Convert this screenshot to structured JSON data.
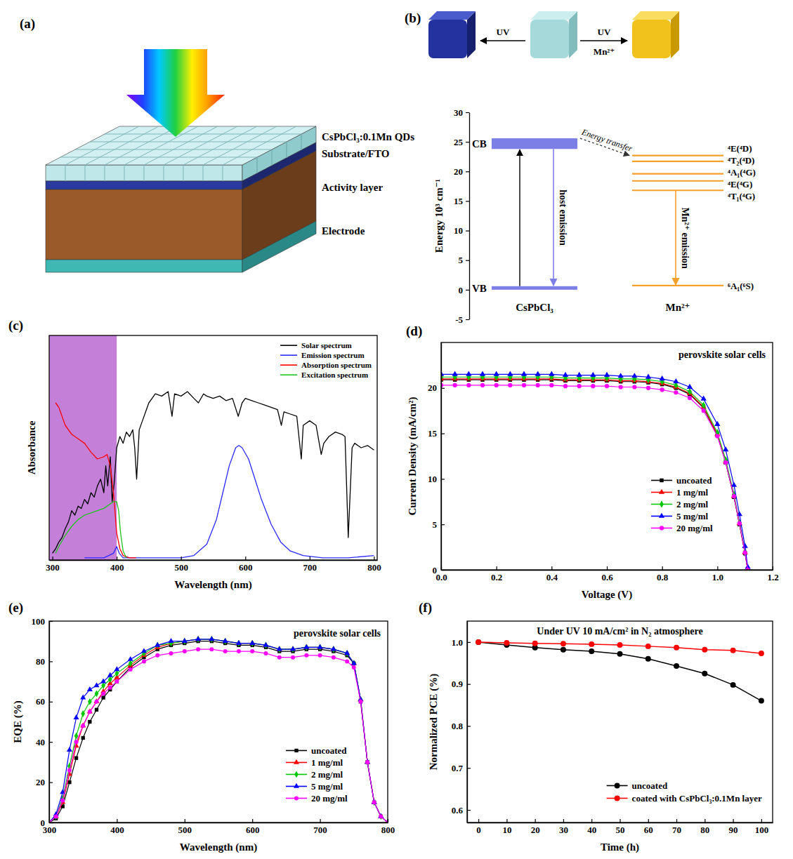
{
  "device_diagram": {
    "panel_label": "(a)",
    "layers": [
      "CsPbCl₃:0.1Mn QDs",
      "Substrate/FTO",
      "Activity layer",
      "Electrode"
    ]
  },
  "cube_diagram": {
    "panel_label": "(b)",
    "left_arrow_label": "UV",
    "right_arrow_label": "UV",
    "right_arrow_sublabel": "Mn²⁺"
  },
  "chart_data": [
    {
      "type": "energy_level",
      "ylabel": "Energy 10³ cm⁻¹",
      "ylim": [
        -5,
        30
      ],
      "yticks": [
        -5,
        0,
        5,
        10,
        15,
        20,
        25,
        30
      ],
      "host": {
        "name": "CsPbCl₃",
        "color": "#7b7fe6",
        "emission_label": "host emission",
        "bands": [
          {
            "label": "CB",
            "range": [
              23.8,
              25.6
            ]
          },
          {
            "label": "VB",
            "range": [
              0,
              0.6
            ]
          }
        ]
      },
      "dopant": {
        "name": "Mn²⁺",
        "color": "#f5a02a",
        "emission_label": "Mn²⁺ emission",
        "levels": [
          {
            "label": "⁴E(⁴D)",
            "energy": 22.7
          },
          {
            "label": "⁴T₂(⁴D)",
            "energy": 21.7
          },
          {
            "label": "⁴A₁(⁴G)",
            "energy": 19.6
          },
          {
            "label": "⁴E(⁴G)",
            "energy": 18.4
          },
          {
            "label": "⁴T₁(⁴G)",
            "energy": 16.8
          },
          {
            "label": "⁶A₁(⁶S)",
            "energy": 0.7
          }
        ]
      },
      "transfer_label": "Energy transfer"
    },
    {
      "type": "line",
      "panel_label": "(c)",
      "xlabel": "Wavelength (nm)",
      "ylabel": "Absorbance",
      "xlim": [
        295,
        805
      ],
      "ylim": [
        0,
        1
      ],
      "xticks": [
        300,
        400,
        500,
        600,
        700,
        800
      ],
      "tick_labels": "x",
      "legend": "upper right",
      "shaded_region": [
        295,
        400
      ],
      "series": [
        {
          "name": "Solar spectrum",
          "color": "#000000",
          "x": [
            300,
            305,
            310,
            315,
            320,
            325,
            330,
            335,
            340,
            345,
            350,
            355,
            360,
            365,
            370,
            375,
            380,
            383,
            386,
            390,
            393,
            396,
            400,
            405,
            410,
            415,
            420,
            425,
            428,
            431,
            435,
            440,
            445,
            450,
            455,
            460,
            470,
            480,
            486,
            490,
            500,
            510,
            520,
            527,
            535,
            540,
            550,
            560,
            570,
            580,
            589,
            595,
            600,
            610,
            620,
            630,
            640,
            650,
            656,
            660,
            670,
            680,
            687,
            690,
            700,
            710,
            718,
            722,
            730,
            740,
            750,
            755,
            760,
            763,
            766,
            770,
            780,
            790,
            800
          ],
          "values": [
            0.03,
            0.05,
            0.08,
            0.1,
            0.14,
            0.17,
            0.22,
            0.2,
            0.24,
            0.23,
            0.27,
            0.25,
            0.3,
            0.28,
            0.33,
            0.36,
            0.3,
            0.42,
            0.33,
            0.46,
            0.26,
            0.34,
            0.5,
            0.55,
            0.52,
            0.57,
            0.55,
            0.58,
            0.5,
            0.36,
            0.58,
            0.62,
            0.66,
            0.7,
            0.72,
            0.74,
            0.73,
            0.75,
            0.64,
            0.74,
            0.73,
            0.75,
            0.72,
            0.7,
            0.74,
            0.73,
            0.72,
            0.73,
            0.71,
            0.72,
            0.64,
            0.7,
            0.72,
            0.71,
            0.7,
            0.69,
            0.68,
            0.67,
            0.6,
            0.66,
            0.65,
            0.64,
            0.45,
            0.6,
            0.62,
            0.6,
            0.47,
            0.52,
            0.55,
            0.57,
            0.56,
            0.55,
            0.1,
            0.3,
            0.5,
            0.52,
            0.5,
            0.51,
            0.49
          ]
        },
        {
          "name": "Emission spectrum",
          "color": "#2a2aff",
          "x": [
            350,
            380,
            395,
            400,
            404,
            410,
            430,
            470,
            500,
            520,
            540,
            555,
            565,
            575,
            585,
            590,
            595,
            605,
            615,
            625,
            640,
            655,
            670,
            690,
            720,
            760,
            800
          ],
          "values": [
            0.01,
            0.01,
            0.03,
            0.06,
            0.03,
            0.01,
            0.01,
            0.01,
            0.01,
            0.02,
            0.07,
            0.18,
            0.3,
            0.42,
            0.5,
            0.51,
            0.5,
            0.45,
            0.36,
            0.27,
            0.16,
            0.08,
            0.04,
            0.02,
            0.01,
            0.01,
            0.02
          ]
        },
        {
          "name": "Absorption spectrum",
          "color": "#ff0000",
          "x": [
            305,
            310,
            320,
            330,
            340,
            350,
            360,
            370,
            380,
            385,
            390,
            395,
            400,
            405,
            410,
            420,
            430
          ],
          "values": [
            0.7,
            0.68,
            0.6,
            0.56,
            0.54,
            0.52,
            0.48,
            0.45,
            0.46,
            0.47,
            0.42,
            0.3,
            0.12,
            0.05,
            0.02,
            0.01,
            0.01
          ]
        },
        {
          "name": "Excitation spectrum",
          "color": "#1fc41f",
          "x": [
            305,
            310,
            320,
            330,
            340,
            350,
            360,
            370,
            380,
            390,
            395,
            400,
            403,
            406,
            410,
            415
          ],
          "values": [
            0.03,
            0.06,
            0.11,
            0.15,
            0.18,
            0.2,
            0.21,
            0.22,
            0.23,
            0.25,
            0.26,
            0.26,
            0.22,
            0.12,
            0.04,
            0.01
          ]
        }
      ]
    },
    {
      "type": "line",
      "panel_label": "(d)",
      "title": "perovskite solar cells",
      "xlabel": "Voltage (V)",
      "ylabel": "Current Density (mA/cm²)",
      "xlim": [
        0,
        1.2
      ],
      "ylim": [
        0,
        25
      ],
      "xticks": [
        {
          "value": 0,
          "label": "0.0"
        },
        0.2,
        0.4,
        0.6,
        0.8,
        {
          "value": 1,
          "label": "1.0"
        },
        1.2
      ],
      "yticks": [
        0,
        5,
        10,
        15,
        20
      ],
      "legend": "lower right",
      "x": [
        0,
        0.05,
        0.1,
        0.15,
        0.2,
        0.25,
        0.3,
        0.35,
        0.4,
        0.45,
        0.5,
        0.55,
        0.6,
        0.65,
        0.7,
        0.75,
        0.8,
        0.85,
        0.9,
        0.95,
        1.0,
        1.03,
        1.06,
        1.08,
        1.1,
        1.11
      ],
      "series": [
        {
          "name": "uncoated",
          "color": "#000000",
          "marker": "square",
          "values": [
            20.9,
            20.9,
            20.9,
            20.9,
            20.9,
            20.9,
            20.9,
            20.9,
            20.9,
            20.8,
            20.8,
            20.8,
            20.8,
            20.7,
            20.7,
            20.6,
            20.4,
            20.0,
            19.3,
            17.8,
            14.8,
            11.8,
            8.0,
            5.0,
            1.8,
            0
          ]
        },
        {
          "name": "1 mg/ml",
          "color": "#ff0000",
          "marker": "triangle",
          "values": [
            21.0,
            21.0,
            21.0,
            21.0,
            21.0,
            21.0,
            21.0,
            21.0,
            21.0,
            20.9,
            20.9,
            20.9,
            20.9,
            20.8,
            20.8,
            20.7,
            20.5,
            20.1,
            19.4,
            17.9,
            14.9,
            11.9,
            8.1,
            5.1,
            1.9,
            0
          ]
        },
        {
          "name": "2 mg/ml",
          "color": "#00c800",
          "marker": "diamond",
          "values": [
            21.2,
            21.2,
            21.2,
            21.2,
            21.2,
            21.2,
            21.2,
            21.2,
            21.2,
            21.1,
            21.1,
            21.1,
            21.1,
            21.0,
            21.0,
            20.9,
            20.7,
            20.3,
            19.6,
            18.1,
            15.1,
            12.1,
            8.3,
            5.2,
            2.0,
            0
          ]
        },
        {
          "name": "5 mg/ml",
          "color": "#0000ff",
          "marker": "triangle",
          "values": [
            21.5,
            21.5,
            21.5,
            21.5,
            21.5,
            21.5,
            21.5,
            21.5,
            21.5,
            21.4,
            21.4,
            21.4,
            21.4,
            21.3,
            21.3,
            21.2,
            21.0,
            20.7,
            20.1,
            18.8,
            16.0,
            13.2,
            9.3,
            6.1,
            2.6,
            0.3
          ]
        },
        {
          "name": "20 mg/ml",
          "color": "#ff00ff",
          "marker": "circle",
          "values": [
            20.3,
            20.3,
            20.3,
            20.3,
            20.3,
            20.3,
            20.3,
            20.3,
            20.3,
            20.2,
            20.2,
            20.2,
            20.2,
            20.1,
            20.1,
            20.0,
            19.8,
            19.5,
            18.9,
            17.5,
            14.7,
            11.8,
            8.1,
            5.1,
            1.9,
            0
          ]
        }
      ]
    },
    {
      "type": "line",
      "panel_label": "(e)",
      "title": "perovskite solar cells",
      "xlabel": "Wavelength (nm)",
      "ylabel": "EQE (%)",
      "xlim": [
        300,
        800
      ],
      "ylim": [
        0,
        100
      ],
      "xticks": [
        300,
        400,
        500,
        600,
        700,
        800
      ],
      "yticks": [
        0,
        20,
        40,
        60,
        80,
        100
      ],
      "legend": "lower right",
      "x": [
        300,
        310,
        320,
        330,
        340,
        350,
        360,
        370,
        380,
        390,
        400,
        420,
        440,
        460,
        480,
        500,
        520,
        540,
        560,
        580,
        600,
        620,
        640,
        660,
        680,
        700,
        720,
        740,
        750,
        760,
        770,
        780,
        790,
        800
      ],
      "series": [
        {
          "name": "uncoated",
          "color": "#000000",
          "marker": "square",
          "values": [
            0,
            2,
            8,
            20,
            32,
            42,
            50,
            56,
            62,
            66,
            70,
            77,
            82,
            86,
            88,
            89,
            90,
            90,
            89,
            88,
            88,
            87,
            85,
            85,
            86,
            86,
            85,
            83,
            79,
            60,
            30,
            10,
            3,
            0
          ]
        },
        {
          "name": "1 mg/ml",
          "color": "#ff0000",
          "marker": "triangle",
          "values": [
            0,
            3,
            10,
            24,
            38,
            48,
            55,
            60,
            65,
            69,
            72,
            78,
            83,
            87,
            89,
            90,
            91,
            91,
            90,
            89,
            89,
            88,
            86,
            86,
            87,
            87,
            86,
            84,
            79,
            61,
            30,
            10,
            3,
            0
          ]
        },
        {
          "name": "2 mg/ml",
          "color": "#00c800",
          "marker": "diamond",
          "values": [
            0,
            3,
            12,
            28,
            43,
            54,
            60,
            64,
            68,
            71,
            74,
            79,
            84,
            88,
            89,
            90,
            91,
            91,
            90,
            89,
            89,
            88,
            86,
            86,
            87,
            87,
            86,
            84,
            79,
            61,
            30,
            10,
            3,
            0
          ]
        },
        {
          "name": "5 mg/ml",
          "color": "#0000ff",
          "marker": "triangle",
          "values": [
            0,
            4,
            15,
            36,
            52,
            62,
            66,
            68,
            70,
            73,
            76,
            81,
            85,
            88,
            90,
            90,
            91,
            91,
            90,
            89,
            89,
            88,
            86,
            86,
            87,
            87,
            86,
            84,
            79,
            61,
            30,
            10,
            3,
            0
          ]
        },
        {
          "name": "20 mg/ml",
          "color": "#ff00ff",
          "marker": "circle",
          "values": [
            0,
            3,
            11,
            26,
            40,
            48,
            55,
            60,
            64,
            67,
            70,
            76,
            80,
            83,
            84,
            85,
            86,
            86,
            85,
            85,
            85,
            84,
            82,
            82,
            83,
            83,
            82,
            80,
            77,
            60,
            30,
            10,
            3,
            0
          ]
        }
      ]
    },
    {
      "type": "line",
      "panel_label": "(f)",
      "title": "Under UV 10 mA/cm² in N₂ atmosphere",
      "xlabel": "Time (h)",
      "ylabel": "Normalized PCE (%)",
      "xlim": [
        -4,
        104
      ],
      "ylim": [
        0.57,
        1.05
      ],
      "xticks": [
        0,
        10,
        20,
        30,
        40,
        50,
        60,
        70,
        80,
        90,
        100
      ],
      "yticks": [
        0.6,
        0.7,
        0.8,
        0.9,
        {
          "value": 1,
          "label": "1.0"
        }
      ],
      "legend": "lower right",
      "x": [
        0,
        10,
        20,
        30,
        40,
        50,
        60,
        70,
        80,
        90,
        100
      ],
      "series": [
        {
          "name": "uncoated",
          "color": "#000000",
          "marker": "circle",
          "values": [
            1.0,
            0.993,
            0.987,
            0.982,
            0.978,
            0.972,
            0.96,
            0.943,
            0.925,
            0.898,
            0.86
          ]
        },
        {
          "name": "coated with CsPbCl₃:0.1Mn layer",
          "color": "#ff0000",
          "marker": "circle",
          "values": [
            1.0,
            0.998,
            0.997,
            0.996,
            0.995,
            0.993,
            0.99,
            0.987,
            0.982,
            0.98,
            0.973
          ]
        }
      ]
    }
  ]
}
